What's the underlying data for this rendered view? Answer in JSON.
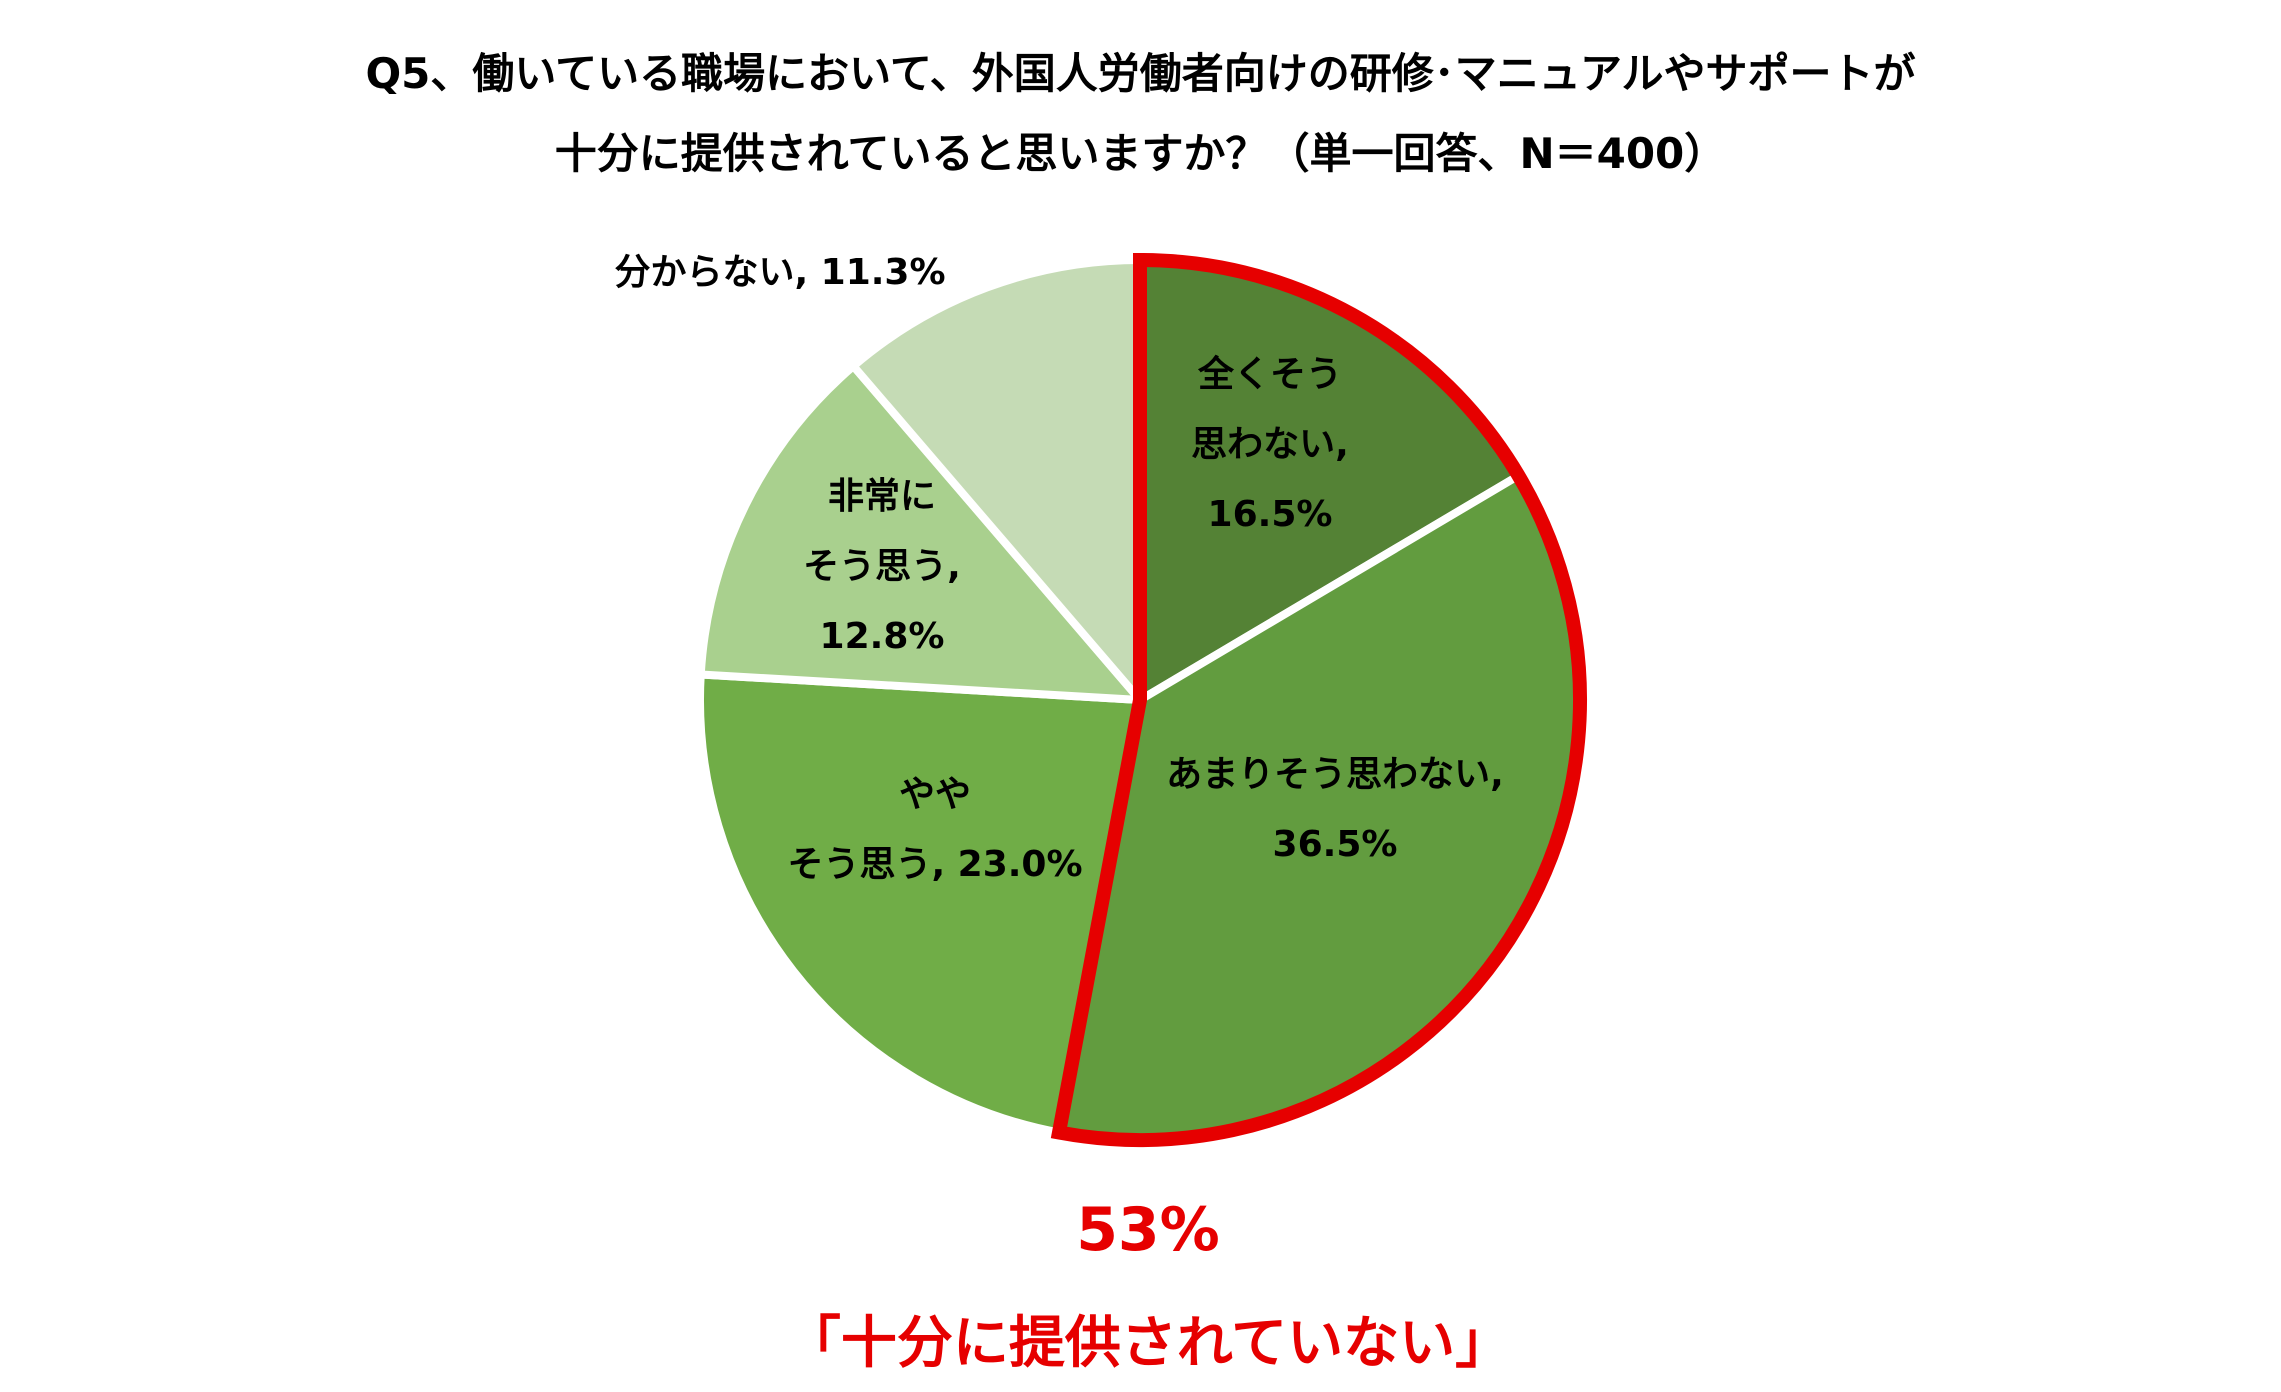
{
  "chart_data": {
    "type": "pie",
    "title_lines": [
      "Q5、働いている職場において、外国人労働者向けの研修･マニュアルやサポートが",
      "十分に提供されていると思いますか？（単一回答、N＝400）"
    ],
    "slices": [
      {
        "label_lines": [
          "全くそう",
          "思わない,",
          "16.5%"
        ],
        "category": "全くそう思わない",
        "value": 16.5,
        "color": "#548235"
      },
      {
        "label_lines": [
          "あまりそう思わない,",
          "36.5%"
        ],
        "category": "あまりそう思わない",
        "value": 36.5,
        "color": "#629c3f"
      },
      {
        "label_lines": [
          "やや",
          "そう思う, 23.0%"
        ],
        "category": "ややそう思う",
        "value": 23.0,
        "color": "#70ad47"
      },
      {
        "label_lines": [
          "非常に",
          "そう思う,",
          "12.8%"
        ],
        "category": "非常にそう思う",
        "value": 12.8,
        "color": "#a9d08e"
      },
      {
        "label_lines": [
          "分からない, 11.3%"
        ],
        "category": "分からない",
        "value": 11.3,
        "color": "#c5dbb5"
      }
    ],
    "start_angle_deg": 0,
    "direction": "clockwise",
    "highlight": {
      "categories": [
        "全くそう思わない",
        "あまりそう思わない"
      ],
      "value_text": "53%",
      "label_text": "「十分に提供されていない」",
      "color": "#e60000"
    },
    "legend": "none"
  }
}
